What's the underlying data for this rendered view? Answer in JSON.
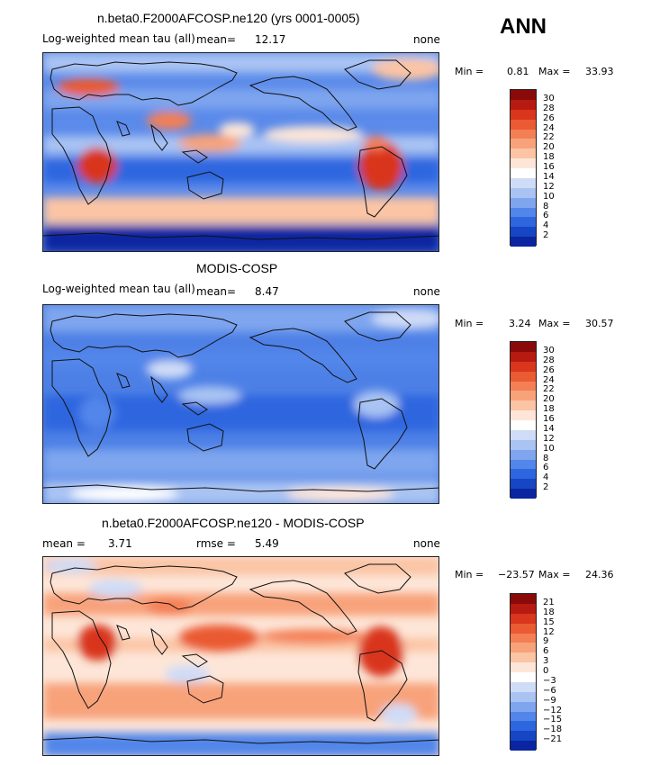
{
  "season": "ANN",
  "panels": [
    {
      "title": "n.beta0.F2000AFCOSP.ne120 (yrs 0001-0005)",
      "left_label": "Log-weighted mean tau (all)",
      "mean_label": "mean=",
      "mean_value": "12.17",
      "units": "none",
      "min_label": "Min =",
      "min_value": "0.81",
      "max_label": "Max =",
      "max_value": "33.93",
      "colorbar_labels": [
        "30",
        "28",
        "26",
        "24",
        "22",
        "20",
        "18",
        "16",
        "14",
        "12",
        "10",
        "8",
        "6",
        "4",
        "2"
      ],
      "colorbar_colors": [
        "#8a0a0a",
        "#b71a10",
        "#d9361d",
        "#ea5a33",
        "#f47f55",
        "#f8a27a",
        "#fbc4a4",
        "#fde6d8",
        "#ffffff",
        "#cfdcf7",
        "#a9c3f3",
        "#7ea5ee",
        "#5386ea",
        "#2e66df",
        "#1646c4",
        "#0b25a0"
      ]
    },
    {
      "title": "MODIS-COSP",
      "left_label": "Log-weighted mean tau (all)",
      "mean_label": "mean=",
      "mean_value": "8.47",
      "units": "none",
      "min_label": "Min =",
      "min_value": "3.24",
      "max_label": "Max =",
      "max_value": "30.57",
      "colorbar_labels": [
        "30",
        "28",
        "26",
        "24",
        "22",
        "20",
        "18",
        "16",
        "14",
        "12",
        "10",
        "8",
        "6",
        "4",
        "2"
      ],
      "colorbar_colors": [
        "#8a0a0a",
        "#b71a10",
        "#d9361d",
        "#ea5a33",
        "#f47f55",
        "#f8a27a",
        "#fbc4a4",
        "#fde6d8",
        "#ffffff",
        "#cfdcf7",
        "#a9c3f3",
        "#7ea5ee",
        "#5386ea",
        "#2e66df",
        "#1646c4",
        "#0b25a0"
      ]
    },
    {
      "title": "n.beta0.F2000AFCOSP.ne120 - MODIS-COSP",
      "left_label": "mean =",
      "left_value": "3.71",
      "rmse_label": "rmse =",
      "rmse_value": "5.49",
      "units": "none",
      "min_label": "Min =",
      "min_value": "−23.57",
      "max_label": "Max =",
      "max_value": "24.36",
      "colorbar_labels": [
        "21",
        "18",
        "15",
        "12",
        "9",
        "6",
        "3",
        "0",
        "−3",
        "−6",
        "−9",
        "−12",
        "−15",
        "−18",
        "−21"
      ],
      "colorbar_colors": [
        "#8a0a0a",
        "#b71a10",
        "#d9361d",
        "#ea5a33",
        "#f47f55",
        "#f8a27a",
        "#fbc4a4",
        "#fde6d8",
        "#ffffff",
        "#cfdcf7",
        "#a9c3f3",
        "#7ea5ee",
        "#5386ea",
        "#2e66df",
        "#1646c4",
        "#0b25a0"
      ]
    }
  ]
}
